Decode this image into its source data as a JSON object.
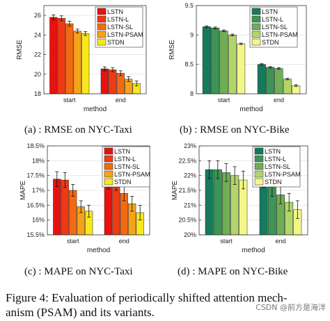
{
  "chart_data": [
    {
      "type": "bar",
      "caption": "(a) : RMSE on NYC-Taxi",
      "xlabel": "method",
      "ylabel": "RMSE",
      "categories": [
        "start",
        "end"
      ],
      "ylim": [
        18,
        27
      ],
      "yticks": [
        18,
        20,
        22,
        24,
        26
      ],
      "ytick_labels": [
        "18",
        "20",
        "22",
        "24",
        "26"
      ],
      "grid": true,
      "legend_position": "top-right",
      "series": [
        {
          "name": "LSTN",
          "color": "#e8110e",
          "values": [
            25.8,
            20.55
          ],
          "errors": [
            0.25,
            0.2
          ]
        },
        {
          "name": "LSTN-L",
          "color": "#ef3a14",
          "values": [
            25.7,
            20.45
          ],
          "errors": [
            0.25,
            0.2
          ]
        },
        {
          "name": "LSTN-SL",
          "color": "#f36a12",
          "values": [
            25.15,
            20.1
          ],
          "errors": [
            0.25,
            0.25
          ]
        },
        {
          "name": "LSTN-PSAM",
          "color": "#f6a318",
          "values": [
            24.4,
            19.5
          ],
          "errors": [
            0.2,
            0.25
          ]
        },
        {
          "name": "STDN",
          "color": "#f8e81c",
          "values": [
            24.15,
            19.05
          ],
          "errors": [
            0.2,
            0.25
          ]
        }
      ]
    },
    {
      "type": "bar",
      "caption": "(b) : RMSE on NYC-Bike",
      "xlabel": "method",
      "ylabel": "RMSE",
      "categories": [
        "start",
        "end"
      ],
      "ylim": [
        8,
        9.5
      ],
      "yticks": [
        8,
        8.5,
        9,
        9.5
      ],
      "ytick_labels": [
        "8",
        "8.5",
        "9",
        "9.5"
      ],
      "grid": true,
      "legend_position": "top-right",
      "series": [
        {
          "name": "LSTN",
          "color": "#167a5c",
          "values": [
            9.14,
            8.5
          ],
          "errors": [
            0.015,
            0.012
          ]
        },
        {
          "name": "LSTN-L",
          "color": "#3c9457",
          "values": [
            9.12,
            8.45
          ],
          "errors": [
            0.015,
            0.012
          ]
        },
        {
          "name": "LSTN-SL",
          "color": "#6fae55",
          "values": [
            9.07,
            8.43
          ],
          "errors": [
            0.015,
            0.012
          ]
        },
        {
          "name": "LSTN-PSAM",
          "color": "#b2d56a",
          "values": [
            9.0,
            8.25
          ],
          "errors": [
            0.015,
            0.012
          ]
        },
        {
          "name": "STDN",
          "color": "#f3f68a",
          "values": [
            8.85,
            8.14
          ],
          "errors": [
            0.012,
            0.015
          ]
        }
      ]
    },
    {
      "type": "bar",
      "caption": "(c) : MAPE on NYC-Taxi",
      "xlabel": "method",
      "ylabel": "MAPE",
      "categories": [
        "start",
        "end"
      ],
      "ylim": [
        15.5,
        18.5
      ],
      "yticks": [
        15.5,
        16,
        16.5,
        17,
        17.5,
        18,
        18.5
      ],
      "ytick_labels": [
        "15.5%",
        "16%",
        "16.5%",
        "17%",
        "17.5%",
        "18%",
        "18.5%"
      ],
      "grid": true,
      "legend_position": "top-right",
      "series": [
        {
          "name": "LSTN",
          "color": "#e8110e",
          "values": [
            17.38,
            17.3
          ],
          "errors": [
            0.25,
            0.25
          ]
        },
        {
          "name": "LSTN-L",
          "color": "#ef3a14",
          "values": [
            17.35,
            17.25
          ],
          "errors": [
            0.25,
            0.25
          ]
        },
        {
          "name": "LSTN-SL",
          "color": "#f36a12",
          "values": [
            17.0,
            16.9
          ],
          "errors": [
            0.2,
            0.25
          ]
        },
        {
          "name": "LSTN-PSAM",
          "color": "#f6a318",
          "values": [
            16.45,
            16.55
          ],
          "errors": [
            0.2,
            0.25
          ]
        },
        {
          "name": "STDN",
          "color": "#f8e81c",
          "values": [
            16.3,
            16.25
          ],
          "errors": [
            0.2,
            0.25
          ]
        }
      ]
    },
    {
      "type": "bar",
      "caption": "(d) : MAPE on NYC-Bike",
      "xlabel": "method",
      "ylabel": "MAPE",
      "categories": [
        "start",
        "end"
      ],
      "ylim": [
        20,
        23
      ],
      "yticks": [
        20,
        20.5,
        21,
        21.5,
        22,
        22.5,
        23
      ],
      "ytick_labels": [
        "20%",
        "20.5%",
        "21%",
        "21.5%",
        "22%",
        "22.5%",
        "23%"
      ],
      "grid": true,
      "legend_position": "top-right",
      "series": [
        {
          "name": "LSTN",
          "color": "#167a5c",
          "values": [
            22.2,
            21.9
          ],
          "errors": [
            0.3,
            0.3
          ]
        },
        {
          "name": "LSTN-L",
          "color": "#3c9457",
          "values": [
            22.2,
            21.6
          ],
          "errors": [
            0.3,
            0.3
          ]
        },
        {
          "name": "LSTN-SL",
          "color": "#6fae55",
          "values": [
            22.1,
            21.35
          ],
          "errors": [
            0.3,
            0.3
          ]
        },
        {
          "name": "LSTN-PSAM",
          "color": "#b2d56a",
          "values": [
            22.0,
            21.1
          ],
          "errors": [
            0.3,
            0.3
          ]
        },
        {
          "name": "STDN",
          "color": "#f3f68a",
          "values": [
            21.85,
            20.85
          ],
          "errors": [
            0.3,
            0.3
          ]
        }
      ]
    }
  ],
  "figure_caption_line1": "Figure 4: Evaluation of periodically shifted attention mech-",
  "figure_caption_line2": "anism (PSAM) and its variants.",
  "watermark": "CSDN @前方是海洋"
}
